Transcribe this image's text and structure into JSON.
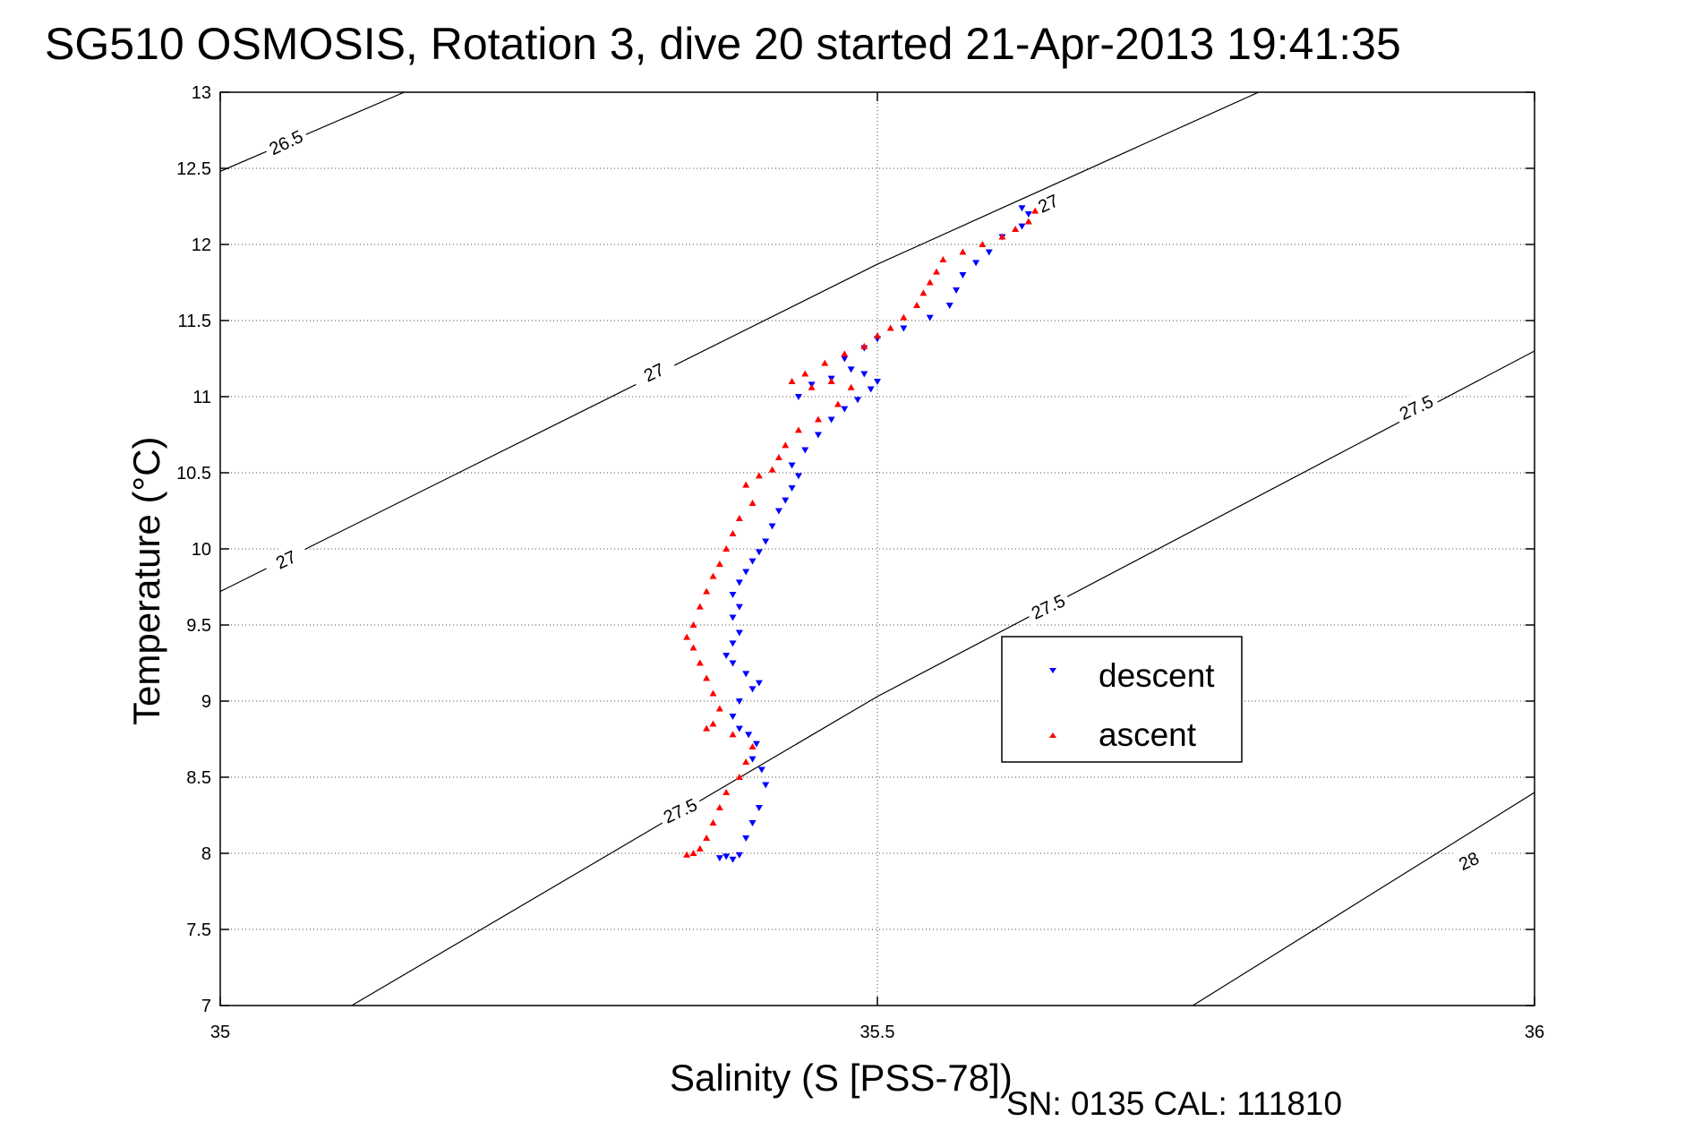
{
  "chart_data": {
    "type": "scatter",
    "title": "SG510 OSMOSIS, Rotation 3, dive 20 started 21-Apr-2013 19:41:35",
    "xlabel": "Salinity (S [PSS-78])",
    "ylabel": "Temperature (°C)",
    "xlim": [
      35,
      36
    ],
    "ylim": [
      7,
      13
    ],
    "x_ticks": [
      35,
      35.5,
      36
    ],
    "x_tick_labels": [
      "35",
      "35.5",
      "36"
    ],
    "y_ticks": [
      7,
      7.5,
      8,
      8.5,
      9,
      9.5,
      10,
      10.5,
      11,
      11.5,
      12,
      12.5,
      13
    ],
    "y_tick_labels": [
      "7",
      "7.5",
      "8",
      "8.5",
      "9",
      "9.5",
      "10",
      "10.5",
      "11",
      "11.5",
      "12",
      "12.5",
      "13"
    ],
    "grid": true,
    "legend_position": "right-middle",
    "density_contours": [
      {
        "level": "26.5",
        "points": [
          [
            35.0,
            12.48
          ],
          [
            35.14,
            13.0
          ]
        ],
        "labels": [
          [
            35.05,
            12.67
          ]
        ]
      },
      {
        "level": "27",
        "points": [
          [
            35.0,
            9.72
          ],
          [
            35.5,
            11.87
          ],
          [
            35.79,
            13.0
          ]
        ],
        "labels": [
          [
            35.05,
            9.93
          ],
          [
            35.33,
            11.16
          ],
          [
            35.63,
            12.27
          ]
        ]
      },
      {
        "level": "27.5",
        "points": [
          [
            35.1,
            7.0
          ],
          [
            35.5,
            9.03
          ],
          [
            36.0,
            11.3
          ]
        ],
        "labels": [
          [
            35.35,
            8.28
          ],
          [
            35.63,
            9.62
          ],
          [
            35.91,
            10.93
          ]
        ]
      },
      {
        "level": "28",
        "points": [
          [
            35.74,
            7.0
          ],
          [
            36.0,
            8.4
          ]
        ],
        "labels": [
          [
            35.95,
            7.95
          ]
        ]
      }
    ],
    "series": [
      {
        "name": "descent",
        "color": "#0000ff",
        "marker": "triangle-down",
        "points": [
          [
            35.38,
            7.97
          ],
          [
            35.385,
            7.98
          ],
          [
            35.39,
            7.96
          ],
          [
            35.395,
            7.99
          ],
          [
            35.4,
            8.1
          ],
          [
            35.405,
            8.2
          ],
          [
            35.41,
            8.3
          ],
          [
            35.415,
            8.45
          ],
          [
            35.412,
            8.55
          ],
          [
            35.405,
            8.62
          ],
          [
            35.408,
            8.72
          ],
          [
            35.402,
            8.78
          ],
          [
            35.395,
            8.82
          ],
          [
            35.39,
            8.9
          ],
          [
            35.395,
            9.0
          ],
          [
            35.405,
            9.08
          ],
          [
            35.41,
            9.12
          ],
          [
            35.4,
            9.18
          ],
          [
            35.39,
            9.25
          ],
          [
            35.385,
            9.3
          ],
          [
            35.39,
            9.38
          ],
          [
            35.395,
            9.45
          ],
          [
            35.39,
            9.55
          ],
          [
            35.395,
            9.62
          ],
          [
            35.39,
            9.7
          ],
          [
            35.395,
            9.78
          ],
          [
            35.4,
            9.85
          ],
          [
            35.405,
            9.92
          ],
          [
            35.41,
            9.98
          ],
          [
            35.415,
            10.05
          ],
          [
            35.42,
            10.15
          ],
          [
            35.425,
            10.25
          ],
          [
            35.43,
            10.32
          ],
          [
            35.435,
            10.4
          ],
          [
            35.44,
            10.48
          ],
          [
            35.435,
            10.55
          ],
          [
            35.445,
            10.65
          ],
          [
            35.455,
            10.75
          ],
          [
            35.465,
            10.85
          ],
          [
            35.475,
            10.92
          ],
          [
            35.485,
            10.98
          ],
          [
            35.495,
            11.05
          ],
          [
            35.5,
            11.1
          ],
          [
            35.49,
            11.15
          ],
          [
            35.48,
            11.18
          ],
          [
            35.465,
            11.12
          ],
          [
            35.45,
            11.08
          ],
          [
            35.44,
            11.0
          ],
          [
            35.475,
            11.25
          ],
          [
            35.49,
            11.32
          ],
          [
            35.5,
            11.38
          ],
          [
            35.52,
            11.45
          ],
          [
            35.54,
            11.52
          ],
          [
            35.555,
            11.6
          ],
          [
            35.56,
            11.7
          ],
          [
            35.565,
            11.8
          ],
          [
            35.575,
            11.88
          ],
          [
            35.585,
            11.95
          ],
          [
            35.595,
            12.05
          ],
          [
            35.61,
            12.12
          ],
          [
            35.615,
            12.2
          ],
          [
            35.61,
            12.24
          ]
        ]
      },
      {
        "name": "ascent",
        "color": "#ff0000",
        "marker": "triangle-up",
        "points": [
          [
            35.62,
            12.22
          ],
          [
            35.615,
            12.15
          ],
          [
            35.605,
            12.1
          ],
          [
            35.595,
            12.05
          ],
          [
            35.58,
            12.0
          ],
          [
            35.565,
            11.95
          ],
          [
            35.55,
            11.9
          ],
          [
            35.545,
            11.82
          ],
          [
            35.54,
            11.75
          ],
          [
            35.535,
            11.68
          ],
          [
            35.53,
            11.6
          ],
          [
            35.52,
            11.52
          ],
          [
            35.51,
            11.45
          ],
          [
            35.5,
            11.4
          ],
          [
            35.49,
            11.33
          ],
          [
            35.475,
            11.28
          ],
          [
            35.46,
            11.22
          ],
          [
            35.445,
            11.15
          ],
          [
            35.435,
            11.1
          ],
          [
            35.45,
            11.06
          ],
          [
            35.465,
            11.1
          ],
          [
            35.48,
            11.06
          ],
          [
            35.47,
            10.95
          ],
          [
            35.455,
            10.85
          ],
          [
            35.44,
            10.78
          ],
          [
            35.43,
            10.68
          ],
          [
            35.425,
            10.6
          ],
          [
            35.42,
            10.52
          ],
          [
            35.41,
            10.48
          ],
          [
            35.4,
            10.42
          ],
          [
            35.405,
            10.3
          ],
          [
            35.395,
            10.2
          ],
          [
            35.39,
            10.1
          ],
          [
            35.385,
            10.0
          ],
          [
            35.38,
            9.9
          ],
          [
            35.375,
            9.82
          ],
          [
            35.37,
            9.72
          ],
          [
            35.365,
            9.62
          ],
          [
            35.36,
            9.5
          ],
          [
            35.355,
            9.42
          ],
          [
            35.36,
            9.35
          ],
          [
            35.365,
            9.25
          ],
          [
            35.37,
            9.15
          ],
          [
            35.375,
            9.05
          ],
          [
            35.38,
            8.95
          ],
          [
            35.375,
            8.85
          ],
          [
            35.37,
            8.82
          ],
          [
            35.39,
            8.78
          ],
          [
            35.405,
            8.7
          ],
          [
            35.4,
            8.6
          ],
          [
            35.395,
            8.5
          ],
          [
            35.385,
            8.4
          ],
          [
            35.38,
            8.3
          ],
          [
            35.375,
            8.2
          ],
          [
            35.37,
            8.1
          ],
          [
            35.365,
            8.03
          ],
          [
            35.36,
            8.0
          ],
          [
            35.355,
            7.99
          ]
        ]
      }
    ]
  },
  "footer": {
    "serial_text": "SN: 0135  CAL: 111810"
  }
}
